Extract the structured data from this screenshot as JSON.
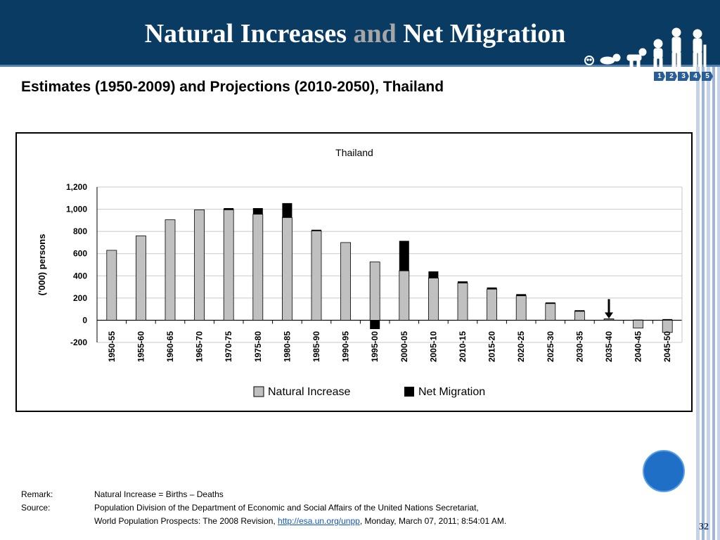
{
  "slide": {
    "title_part1": "Natural Increases",
    "title_part2": "and",
    "title_part3": "Net Migration",
    "subtitle": "Estimates (1950-2009) and Projections (2010-2050), Thailand",
    "nav": [
      "1",
      "2",
      "3",
      "4",
      "5"
    ],
    "page_number": "32"
  },
  "notes": {
    "remark_label": "Remark:",
    "remark_text": "Natural Increase = Births – Deaths",
    "source_label": "Source:",
    "source_line1": "Population Division of the Department of Economic and Social Affairs of the United Nations Secretariat,",
    "source_line2_pre": "World Population Prospects: The 2008 Revision, ",
    "source_link": "http://esa.un.org/unpp",
    "source_line2_post": ", Monday, March 07, 2011; 8:54:01 AM."
  },
  "colors": {
    "header_bg": "#0a3b63",
    "natural_increase": "#c0c0c0",
    "net_migration": "#000000",
    "accent_circle": "#1f6fc6"
  },
  "icons": [
    "people-growth-icon",
    "arrow-down-icon"
  ],
  "chart_data": {
    "type": "bar",
    "title": "Thailand",
    "ylabel": "('000) persons",
    "xlabel": "",
    "ylim": [
      -200,
      1200
    ],
    "yticks": [
      -200,
      0,
      200,
      400,
      600,
      800,
      1000,
      1200
    ],
    "ytick_labels": [
      "-200",
      "0",
      "200",
      "400",
      "600",
      "800",
      "1,000",
      "1,200"
    ],
    "grid": true,
    "legend": "bottom",
    "stacked": true,
    "categories": [
      "1950-55",
      "1955-60",
      "1960-65",
      "1965-70",
      "1970-75",
      "1975-80",
      "1980-85",
      "1985-90",
      "1990-95",
      "1995-00",
      "2000-05",
      "2005-10",
      "2010-15",
      "2015-20",
      "2020-25",
      "2025-30",
      "2030-35",
      "2035-40",
      "2040-45",
      "2045-50"
    ],
    "series": [
      {
        "name": "Natural Increase",
        "values": [
          630,
          760,
          905,
          995,
          995,
          955,
          925,
          805,
          700,
          525,
          445,
          380,
          335,
          280,
          220,
          150,
          80,
          10,
          -70,
          -110
        ]
      },
      {
        "name": "Net Migration",
        "values": [
          0,
          0,
          0,
          0,
          15,
          55,
          130,
          10,
          0,
          -80,
          270,
          60,
          15,
          15,
          15,
          10,
          10,
          5,
          5,
          10
        ]
      }
    ],
    "annotations": [
      {
        "type": "arrow",
        "category": "2035-40"
      }
    ]
  }
}
